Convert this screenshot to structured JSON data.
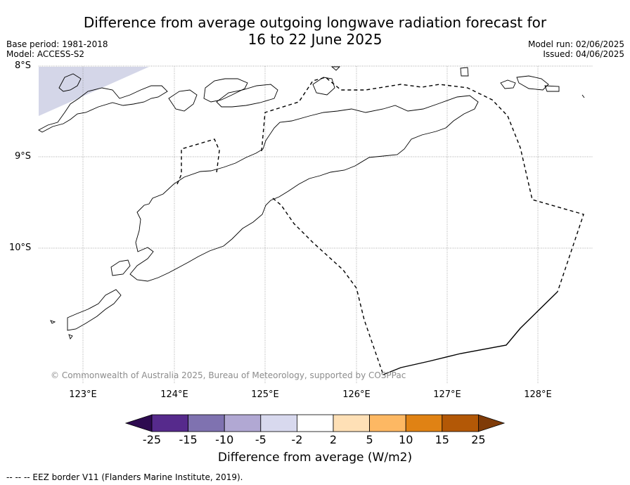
{
  "header": {
    "title_line1": "Difference from average outgoing longwave radiation forecast for",
    "title_line2": "16 to 22 June 2025",
    "base_period": "Base period: 1981-2018",
    "model": "Model: ACCESS-S2",
    "model_run": "Model run: 02/06/2025",
    "issued": "Issued: 04/06/2025"
  },
  "map": {
    "lat_labels": [
      "8°S",
      "9°S",
      "10°S"
    ],
    "lon_labels": [
      "123°E",
      "124°E",
      "125°E",
      "126°E",
      "127°E",
      "128°E"
    ],
    "copyright": "© Commonwealth of Australia 2025, Bureau of Meteorology, supported by COSPPac",
    "anomaly_fill_color": "#d4d6e8",
    "coast_color": "#000000",
    "grid_color": "#8c8c8c"
  },
  "colorbar": {
    "ticks": [
      "-25",
      "-15",
      "-10",
      "-5",
      "-2",
      "2",
      "5",
      "10",
      "15",
      "25"
    ],
    "colors": [
      "#2d0a50",
      "#562a8c",
      "#7f72b0",
      "#b1a8d3",
      "#d8d9ee",
      "#ffffff",
      "#fee0b6",
      "#fdb863",
      "#e08214",
      "#b35806",
      "#7f3b08"
    ],
    "label": "Difference from average (W/m2)"
  },
  "footer": {
    "eez_note": "--  --  -- EEZ border V11 (Flanders Marine Institute, 2019)."
  }
}
